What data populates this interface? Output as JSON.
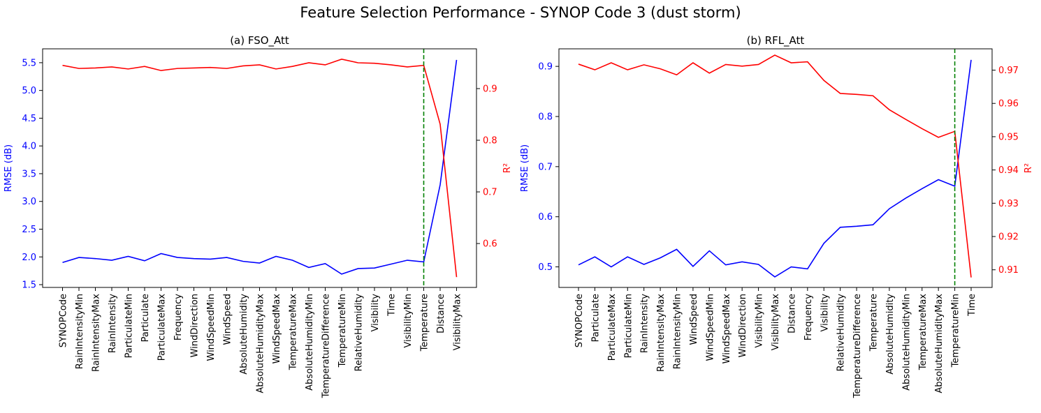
{
  "suptitle": "Feature Selection Performance - SYNOP Code 3 (dust storm)",
  "colors": {
    "rmse": "#0000ff",
    "r2": "#ff0000",
    "cutoff": "#008000",
    "axis": "#000000"
  },
  "chart_data": [
    {
      "type": "line",
      "title": "(a) FSO_Att",
      "xlabel": "",
      "ylabel_left": "RMSE (dB)",
      "ylabel_right": "R²",
      "categories": [
        "SYNOPCode",
        "RainIntensityMin",
        "RainIntensityMax",
        "RainIntensity",
        "ParticulateMin",
        "Particulate",
        "ParticulateMax",
        "Frequency",
        "WindDirection",
        "WindSpeedMin",
        "WindSpeed",
        "AbsoluteHumidity",
        "AbsoluteHumidityMax",
        "WindSpeedMax",
        "TemperatureMax",
        "AbsoluteHumidityMin",
        "TemperatureDifference",
        "TemperatureMin",
        "RelativeHumidity",
        "Visibility",
        "Time",
        "VisibilityMin",
        "Temperature",
        "Distance",
        "VisibilityMax"
      ],
      "ylim_left": [
        1.45,
        5.75
      ],
      "yticks_left": [
        "1.5",
        "2.0",
        "2.5",
        "3.0",
        "3.5",
        "4.0",
        "4.5",
        "5.0",
        "5.5"
      ],
      "ylim_right": [
        0.515,
        0.977
      ],
      "yticks_right": [
        "0.6",
        "0.7",
        "0.8",
        "0.9"
      ],
      "cutoff_category": "Temperature",
      "series": [
        {
          "axis": "left",
          "values": [
            1.9,
            1.99,
            1.97,
            1.94,
            2.01,
            1.93,
            2.06,
            1.99,
            1.97,
            1.96,
            1.99,
            1.92,
            1.89,
            2.01,
            1.94,
            1.81,
            1.88,
            1.69,
            1.79,
            1.8,
            1.87,
            1.94,
            1.91,
            3.3,
            5.55
          ]
        },
        {
          "axis": "right",
          "values": [
            0.945,
            0.939,
            0.94,
            0.942,
            0.938,
            0.943,
            0.935,
            0.939,
            0.94,
            0.941,
            0.939,
            0.944,
            0.946,
            0.938,
            0.943,
            0.95,
            0.946,
            0.957,
            0.95,
            0.949,
            0.946,
            0.942,
            0.945,
            0.831,
            0.535
          ]
        }
      ]
    },
    {
      "type": "line",
      "title": "(b) RFL_Att",
      "xlabel": "",
      "ylabel_left": "RMSE (dB)",
      "ylabel_right": "R²",
      "categories": [
        "SYNOPCode",
        "Particulate",
        "ParticulateMax",
        "ParticulateMin",
        "RainIntensity",
        "RainIntensityMax",
        "RainIntensityMin",
        "WindSpeed",
        "WindSpeedMin",
        "WindSpeedMax",
        "WindDirection",
        "VisibilityMin",
        "VisibilityMax",
        "Distance",
        "Frequency",
        "Visibility",
        "RelativeHumidity",
        "TemperatureDifference",
        "Temperature",
        "AbsoluteHumidity",
        "AbsoluteHumidityMin",
        "TemperatureMax",
        "AbsoluteHumidityMax",
        "TemperatureMin",
        "Time"
      ],
      "ylim_left": [
        0.459,
        0.935
      ],
      "yticks_left": [
        "0.5",
        "0.6",
        "0.7",
        "0.8",
        "0.9"
      ],
      "ylim_right": [
        0.9047,
        0.9764
      ],
      "yticks_right": [
        "0.91",
        "0.92",
        "0.93",
        "0.94",
        "0.95",
        "0.96",
        "0.97"
      ],
      "cutoff_category": "TemperatureMin",
      "series": [
        {
          "axis": "left",
          "values": [
            0.504,
            0.52,
            0.5,
            0.52,
            0.505,
            0.518,
            0.535,
            0.501,
            0.532,
            0.504,
            0.51,
            0.505,
            0.48,
            0.5,
            0.496,
            0.547,
            0.579,
            0.581,
            0.584,
            0.616,
            0.637,
            0.656,
            0.674,
            0.661,
            0.913
          ]
        },
        {
          "axis": "right",
          "values": [
            0.9718,
            0.9701,
            0.9722,
            0.9701,
            0.9716,
            0.9704,
            0.9686,
            0.9722,
            0.9691,
            0.9717,
            0.9712,
            0.9717,
            0.9745,
            0.9722,
            0.9725,
            0.9669,
            0.963,
            0.9627,
            0.9623,
            0.9581,
            0.9552,
            0.9524,
            0.9498,
            0.9516,
            0.9077
          ]
        }
      ]
    }
  ]
}
